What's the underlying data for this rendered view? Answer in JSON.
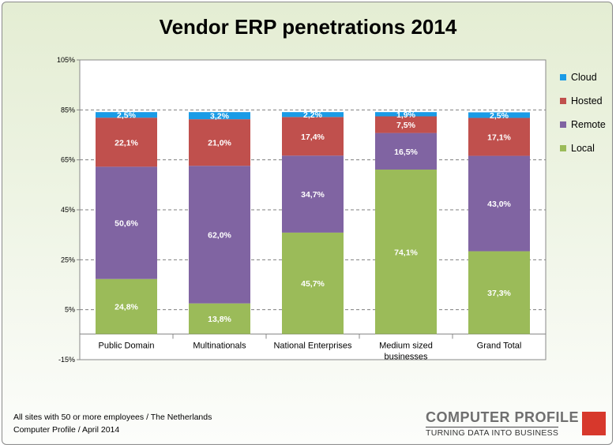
{
  "title": "Vendor ERP penetrations 2014",
  "footnote": {
    "line1": "All sites with 50 or more employees  / The Netherlands",
    "line2": "Computer Profile / April 2014"
  },
  "brand": {
    "name": "COMPUTER PROFILE",
    "tagline": "TURNING DATA INTO BUSINESS"
  },
  "chart_data": {
    "type": "bar",
    "stacked": true,
    "title": "Vendor ERP penetrations 2014",
    "categories": [
      "Public Domain",
      "Multinationals",
      "National Enterprises",
      "Medium sized businesses",
      "Grand Total"
    ],
    "category_lines": [
      [
        "Public Domain"
      ],
      [
        "Multinationals"
      ],
      [
        "National Enterprises"
      ],
      [
        "Medium sized",
        "businesses"
      ],
      [
        "Grand Total"
      ]
    ],
    "series": [
      {
        "name": "Local",
        "color": "#9bbb59",
        "values": [
          24.8,
          13.8,
          45.7,
          74.1,
          37.3
        ],
        "labels": [
          "24,8%",
          "13,8%",
          "45,7%",
          "74,1%",
          "37,3%"
        ]
      },
      {
        "name": "Remote",
        "color": "#8064a2",
        "values": [
          50.6,
          62.0,
          34.7,
          16.5,
          43.0
        ],
        "labels": [
          "50,6%",
          "62,0%",
          "34,7%",
          "16,5%",
          "43,0%"
        ]
      },
      {
        "name": "Hosted",
        "color": "#c0504d",
        "values": [
          22.1,
          21.0,
          17.4,
          7.5,
          17.1
        ],
        "labels": [
          "22,1%",
          "21,0%",
          "17,4%",
          "7,5%",
          "17,1%"
        ]
      },
      {
        "name": "Cloud",
        "color": "#1a9be6",
        "values": [
          2.5,
          3.2,
          2.2,
          1.9,
          2.5
        ],
        "labels": [
          "2,5%",
          "3,2%",
          "2,2%",
          "1,9%",
          "2,5%"
        ]
      }
    ],
    "legend_order": [
      "Cloud",
      "Hosted",
      "Remote",
      "Local"
    ],
    "ylim": [
      -15,
      105
    ],
    "yticks": [
      -15,
      5,
      25,
      45,
      65,
      85,
      105
    ],
    "ytick_labels": [
      "-15%",
      "5%",
      "25%",
      "45%",
      "65%",
      "85%",
      "105%"
    ],
    "grid": "dashed horizontal",
    "legend_position": "right",
    "xlabel": "",
    "ylabel": ""
  }
}
